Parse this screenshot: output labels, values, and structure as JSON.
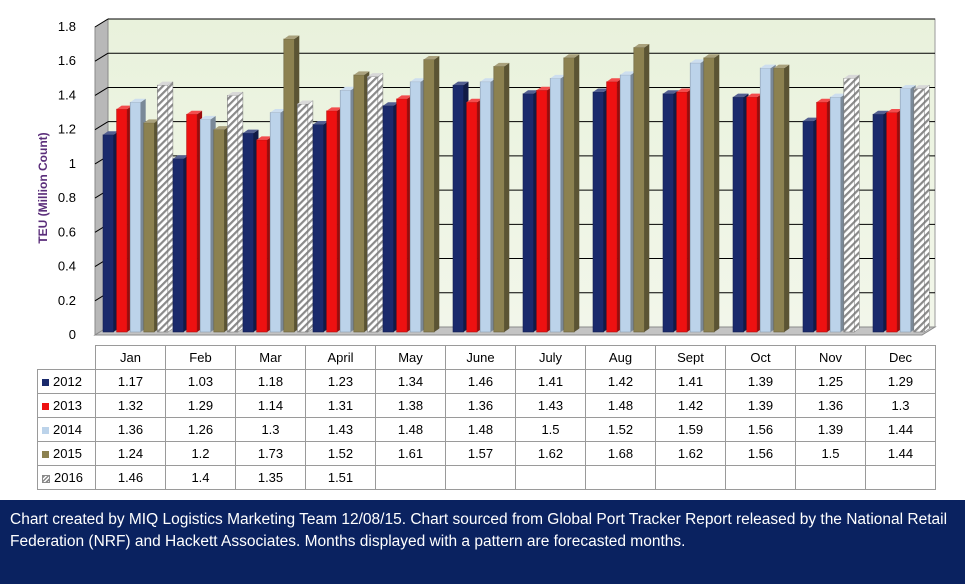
{
  "chart_data": {
    "type": "bar",
    "ylabel": "TEU (Million Count)",
    "ylim": [
      0,
      1.8
    ],
    "y_ticks": [
      "0",
      "0.2",
      "0.4",
      "0.6",
      "0.8",
      "1",
      "1.2",
      "1.4",
      "1.6",
      "1.8"
    ],
    "grid": true,
    "legend_placement": "data-table",
    "categories": [
      "Jan",
      "Feb",
      "Mar",
      "April",
      "May",
      "June",
      "July",
      "Aug",
      "Sept",
      "Oct",
      "Nov",
      "Dec"
    ],
    "series": [
      {
        "name": "2012",
        "color": "#1a2a6c",
        "values": [
          1.17,
          1.03,
          1.18,
          1.23,
          1.34,
          1.46,
          1.41,
          1.42,
          1.41,
          1.39,
          1.25,
          1.29
        ],
        "labels": [
          "1.17",
          "1.03",
          "1.18",
          "1.23",
          "1.34",
          "1.46",
          "1.41",
          "1.42",
          "1.41",
          "1.39",
          "1.25",
          "1.29"
        ]
      },
      {
        "name": "2013",
        "color": "#ee1111",
        "values": [
          1.32,
          1.29,
          1.14,
          1.31,
          1.38,
          1.36,
          1.43,
          1.48,
          1.42,
          1.39,
          1.36,
          1.3
        ],
        "labels": [
          "1.32",
          "1.29",
          "1.14",
          "1.31",
          "1.38",
          "1.36",
          "1.43",
          "1.48",
          "1.42",
          "1.39",
          "1.36",
          "1.3"
        ]
      },
      {
        "name": "2014",
        "color": "#bcd3ea",
        "values": [
          1.36,
          1.26,
          1.3,
          1.43,
          1.48,
          1.48,
          1.5,
          1.52,
          1.59,
          1.56,
          1.39,
          1.44
        ],
        "labels": [
          "1.36",
          "1.26",
          "1.3",
          "1.43",
          "1.48",
          "1.48",
          "1.5",
          "1.52",
          "1.59",
          "1.56",
          "1.39",
          "1.44"
        ]
      },
      {
        "name": "2015",
        "color": "#8c8150",
        "values": [
          1.24,
          1.2,
          1.73,
          1.52,
          1.61,
          1.57,
          1.62,
          1.68,
          1.62,
          1.56,
          1.5,
          1.44
        ],
        "labels": [
          "1.24",
          "1.2",
          "1.73",
          "1.52",
          "1.61",
          "1.57",
          "1.62",
          "1.68",
          "1.62",
          "1.56",
          "1.5",
          "1.44"
        ]
      },
      {
        "name": "2016",
        "color": "#8a8a8a",
        "values": [
          1.46,
          1.4,
          1.35,
          1.51,
          null,
          null,
          null,
          null,
          null,
          null,
          null,
          null
        ],
        "labels": [
          "1.46",
          "1.4",
          "1.35",
          "1.51",
          "",
          "",
          "",
          "",
          "",
          "",
          "",
          ""
        ]
      }
    ],
    "forecast_points": [
      {
        "series": "2015",
        "category": "Nov"
      },
      {
        "series": "2015",
        "category": "Dec"
      }
    ]
  },
  "footer": {
    "text": "Chart created by MIQ Logistics Marketing Team 12/08/15. Chart sourced from Global Port Tracker Report released by the National Retail Federation (NRF) and Hackett Associates. Months displayed with a pattern are forecasted months."
  }
}
